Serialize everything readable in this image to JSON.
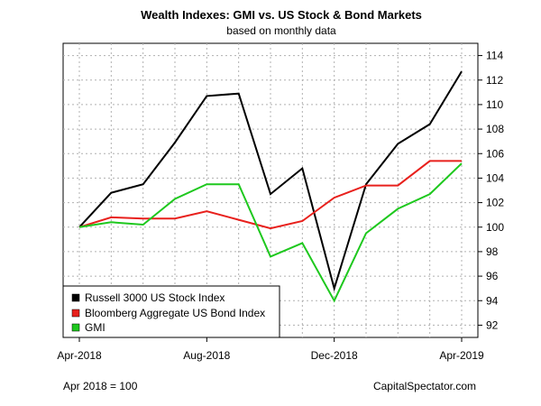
{
  "chart_data": {
    "type": "line",
    "title": "Wealth Indexes: GMI vs. US Stock & Bond Markets",
    "subtitle": "based on monthly data",
    "x": [
      "Apr-2018",
      "May-2018",
      "Jun-2018",
      "Jul-2018",
      "Aug-2018",
      "Sep-2018",
      "Oct-2018",
      "Nov-2018",
      "Dec-2018",
      "Jan-2019",
      "Feb-2019",
      "Mar-2019",
      "Apr-2019"
    ],
    "x_tick_labels": [
      "Apr-2018",
      "Aug-2018",
      "Dec-2018",
      "Apr-2019"
    ],
    "x_tick_indices": [
      0,
      4,
      8,
      12
    ],
    "ylim": [
      91,
      115
    ],
    "y_ticks": [
      92,
      94,
      96,
      98,
      100,
      102,
      104,
      106,
      108,
      110,
      112,
      114
    ],
    "y_axis_side": "right",
    "grid": true,
    "legend_position": "bottom-left",
    "series": [
      {
        "name": "Russell 3000 US Stock Index",
        "color": "#000000",
        "values": [
          100.0,
          102.8,
          103.5,
          106.9,
          110.7,
          110.9,
          102.7,
          104.8,
          95.0,
          103.5,
          106.8,
          108.4,
          112.7
        ]
      },
      {
        "name": "Bloomberg Aggregate US Bond Index",
        "color": "#e8201c",
        "values": [
          100.0,
          100.8,
          100.7,
          100.7,
          101.3,
          100.6,
          99.9,
          100.5,
          102.4,
          103.4,
          103.4,
          105.4,
          105.4
        ]
      },
      {
        "name": "GMI",
        "color": "#1ec81e",
        "values": [
          100.0,
          100.4,
          100.2,
          102.3,
          103.5,
          103.5,
          97.6,
          98.7,
          94.0,
          99.5,
          101.5,
          102.7,
          105.2
        ]
      }
    ]
  },
  "footer": {
    "left": "Apr 2018 = 100",
    "right": "CapitalSpectator.com"
  }
}
